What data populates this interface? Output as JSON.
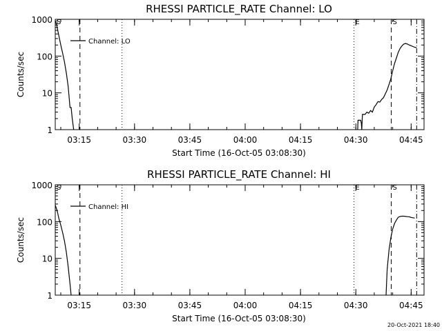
{
  "footer": {
    "timestamp": "20-Oct-2021 18:40"
  },
  "chart_data": [
    {
      "type": "line",
      "title": "RHESSI PARTICLE_RATE Channel: LO",
      "xlabel": "Start Time (16-Oct-05 03:08:30)",
      "ylabel": "Counts/sec",
      "x_unit": "minutes since 03:08:30",
      "xlim": [
        0,
        100
      ],
      "ylim": [
        1,
        1000
      ],
      "yscale": "log",
      "x_ticks": [
        {
          "label": "03:15",
          "value": 6.5
        },
        {
          "label": "03:30",
          "value": 21.5
        },
        {
          "label": "03:45",
          "value": 36.5
        },
        {
          "label": "04:00",
          "value": 51.5
        },
        {
          "label": "04:15",
          "value": 66.5
        },
        {
          "label": "04:30",
          "value": 81.5
        },
        {
          "label": "04:45",
          "value": 96.5
        }
      ],
      "y_ticks": [
        {
          "label": "1",
          "value": 1
        },
        {
          "label": "10",
          "value": 10
        },
        {
          "label": "100",
          "value": 100
        },
        {
          "label": "1000",
          "value": 1000
        }
      ],
      "legend": {
        "entry": "Channel: LO",
        "placement": "top-left"
      },
      "markers": [
        {
          "label": "S",
          "x": 0,
          "style": "dash"
        },
        {
          "label": "",
          "x": 6.7,
          "style": "dash"
        },
        {
          "label": "",
          "x": 18.1,
          "style": "dot"
        },
        {
          "label": "E",
          "x": 81.0,
          "style": "dot"
        },
        {
          "label": "S",
          "x": 91.1,
          "style": "dash"
        },
        {
          "label": "",
          "x": 98.0,
          "style": "dashdot"
        }
      ],
      "series": [
        {
          "name": "Channel: LO",
          "segments": [
            [
              [
                0,
                900
              ],
              [
                0.4,
                700
              ],
              [
                1,
                350
              ],
              [
                1.5,
                200
              ],
              [
                2,
                120
              ],
              [
                2.5,
                70
              ],
              [
                3,
                35
              ],
              [
                3.5,
                15
              ],
              [
                4,
                4
              ],
              [
                4.3,
                4
              ],
              [
                4.6,
                2
              ],
              [
                5,
                1
              ]
            ],
            [
              [
                82.0,
                1
              ],
              [
                82.1,
                1.8
              ],
              [
                82.8,
                1.8
              ],
              [
                83.0,
                1.5
              ],
              [
                83.1,
                1
              ],
              [
                83.3,
                2.6
              ],
              [
                84.0,
                2.6
              ],
              [
                84.5,
                3.0
              ],
              [
                85.0,
                2.8
              ],
              [
                85.5,
                3.3
              ],
              [
                86.0,
                3.0
              ],
              [
                86.5,
                4.1
              ],
              [
                87.0,
                4.8
              ],
              [
                87.5,
                5.8
              ],
              [
                88.0,
                5.6
              ],
              [
                88.5,
                6.6
              ],
              [
                89.0,
                7.4
              ],
              [
                89.5,
                9.4
              ],
              [
                90.0,
                12
              ],
              [
                90.5,
                17
              ],
              [
                91.0,
                24
              ],
              [
                91.5,
                40
              ],
              [
                92.0,
                63
              ],
              [
                92.5,
                89
              ],
              [
                93.0,
                126
              ],
              [
                93.5,
                161
              ],
              [
                94.0,
                190
              ],
              [
                94.5,
                212
              ],
              [
                95.0,
                221
              ],
              [
                95.5,
                212
              ],
              [
                96.0,
                200
              ],
              [
                96.5,
                191
              ],
              [
                97.0,
                182
              ],
              [
                97.5,
                173
              ],
              [
                98.0,
                170
              ]
            ]
          ]
        }
      ]
    },
    {
      "type": "line",
      "title": "RHESSI PARTICLE_RATE Channel: HI",
      "xlabel": "Start Time (16-Oct-05 03:08:30)",
      "ylabel": "Counts/sec",
      "x_unit": "minutes since 03:08:30",
      "xlim": [
        0,
        100
      ],
      "ylim": [
        1,
        1000
      ],
      "yscale": "log",
      "x_ticks": [
        {
          "label": "03:15",
          "value": 6.5
        },
        {
          "label": "03:30",
          "value": 21.5
        },
        {
          "label": "03:45",
          "value": 36.5
        },
        {
          "label": "04:00",
          "value": 51.5
        },
        {
          "label": "04:15",
          "value": 66.5
        },
        {
          "label": "04:30",
          "value": 81.5
        },
        {
          "label": "04:45",
          "value": 96.5
        }
      ],
      "y_ticks": [
        {
          "label": "1",
          "value": 1
        },
        {
          "label": "10",
          "value": 10
        },
        {
          "label": "100",
          "value": 100
        },
        {
          "label": "1000",
          "value": 1000
        }
      ],
      "legend": {
        "entry": "Channel: HI",
        "placement": "top-left"
      },
      "markers": [
        {
          "label": "S",
          "x": 0,
          "style": "dash"
        },
        {
          "label": "",
          "x": 6.7,
          "style": "dash"
        },
        {
          "label": "",
          "x": 18.1,
          "style": "dot"
        },
        {
          "label": "E",
          "x": 81.0,
          "style": "dot"
        },
        {
          "label": "S",
          "x": 91.1,
          "style": "dash"
        },
        {
          "label": "",
          "x": 98.0,
          "style": "dashdot"
        }
      ],
      "series": [
        {
          "name": "Channel: HI",
          "segments": [
            [
              [
                0,
                280
              ],
              [
                0.5,
                200
              ],
              [
                1,
                120
              ],
              [
                1.5,
                80
              ],
              [
                2,
                50
              ],
              [
                2.5,
                30
              ],
              [
                3,
                15
              ],
              [
                3.5,
                6
              ],
              [
                4,
                2
              ],
              [
                4.3,
                1
              ]
            ],
            [
              [
                89.7,
                1
              ],
              [
                90.0,
                5
              ],
              [
                90.5,
                17
              ],
              [
                91.0,
                36
              ],
              [
                91.5,
                63
              ],
              [
                92.0,
                89
              ],
              [
                92.5,
                110
              ],
              [
                93.0,
                131
              ],
              [
                93.5,
                138
              ],
              [
                94.0,
                140
              ],
              [
                94.5,
                140
              ],
              [
                95.0,
                138
              ],
              [
                95.5,
                136
              ],
              [
                96.0,
                135
              ],
              [
                96.5,
                130
              ],
              [
                97.0,
                127
              ],
              [
                97.5,
                125
              ]
            ]
          ]
        }
      ]
    }
  ]
}
